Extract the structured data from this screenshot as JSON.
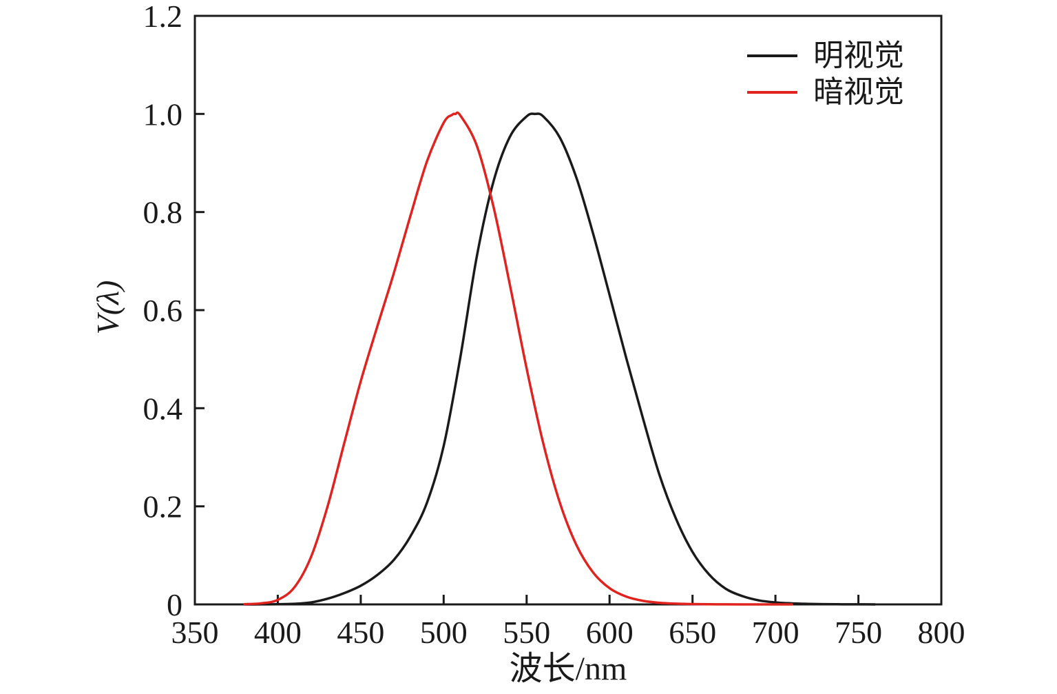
{
  "page": {
    "background": "#ffffff"
  },
  "chart_data": {
    "type": "line",
    "title": "",
    "xlabel": "波长/nm",
    "ylabel": "V(λ)",
    "xlim": [
      350,
      800
    ],
    "ylim": [
      0,
      1.2
    ],
    "x_ticks": [
      350,
      400,
      450,
      500,
      550,
      600,
      650,
      700,
      750,
      800
    ],
    "x_tick_labels": [
      "350",
      "400",
      "450",
      "500",
      "550",
      "600",
      "650",
      "700",
      "750",
      "800"
    ],
    "y_ticks": [
      0,
      0.2,
      0.4,
      0.6,
      0.8,
      1.0,
      1.2
    ],
    "y_tick_labels": [
      "0",
      "0.2",
      "0.4",
      "0.6",
      "0.8",
      "1.0",
      "1.2"
    ],
    "grid": false,
    "legend_position": "top-right-inside",
    "axis_color": "#1a1a1a",
    "series": [
      {
        "name": "明视觉",
        "color": "#1a1a1a",
        "peak": [
          555,
          1.0
        ],
        "points": [
          [
            380,
            4e-05
          ],
          [
            390,
            0.00012
          ],
          [
            400,
            0.0004
          ],
          [
            410,
            0.0012
          ],
          [
            420,
            0.004
          ],
          [
            430,
            0.0116
          ],
          [
            440,
            0.023
          ],
          [
            450,
            0.038
          ],
          [
            460,
            0.06
          ],
          [
            470,
            0.091
          ],
          [
            480,
            0.139
          ],
          [
            490,
            0.208
          ],
          [
            500,
            0.323
          ],
          [
            510,
            0.503
          ],
          [
            520,
            0.71
          ],
          [
            530,
            0.862
          ],
          [
            540,
            0.954
          ],
          [
            550,
            0.995
          ],
          [
            555,
            1.0
          ],
          [
            560,
            0.995
          ],
          [
            570,
            0.952
          ],
          [
            580,
            0.87
          ],
          [
            590,
            0.757
          ],
          [
            600,
            0.631
          ],
          [
            610,
            0.503
          ],
          [
            620,
            0.381
          ],
          [
            630,
            0.265
          ],
          [
            640,
            0.175
          ],
          [
            650,
            0.107
          ],
          [
            660,
            0.061
          ],
          [
            670,
            0.032
          ],
          [
            680,
            0.017
          ],
          [
            690,
            0.0082
          ],
          [
            700,
            0.0041
          ],
          [
            710,
            0.0021
          ],
          [
            720,
            0.00105
          ],
          [
            730,
            0.00052
          ],
          [
            740,
            0.00025
          ],
          [
            750,
            0.00012
          ],
          [
            760,
            6e-05
          ]
        ]
      },
      {
        "name": "暗视觉",
        "color": "#e0231e",
        "peak": [
          507,
          1.0
        ],
        "points": [
          [
            380,
            0.000589
          ],
          [
            390,
            0.002209
          ],
          [
            400,
            0.00929
          ],
          [
            410,
            0.03484
          ],
          [
            420,
            0.0966
          ],
          [
            430,
            0.1998
          ],
          [
            440,
            0.3281
          ],
          [
            450,
            0.455
          ],
          [
            460,
            0.567
          ],
          [
            470,
            0.676
          ],
          [
            480,
            0.793
          ],
          [
            490,
            0.904
          ],
          [
            500,
            0.982
          ],
          [
            505,
            0.998
          ],
          [
            507,
            1.0
          ],
          [
            510,
            0.997
          ],
          [
            520,
            0.935
          ],
          [
            530,
            0.811
          ],
          [
            540,
            0.65
          ],
          [
            550,
            0.481
          ],
          [
            560,
            0.3288
          ],
          [
            570,
            0.2076
          ],
          [
            580,
            0.1212
          ],
          [
            590,
            0.0655
          ],
          [
            600,
            0.03315
          ],
          [
            610,
            0.01593
          ],
          [
            620,
            0.00737
          ],
          [
            630,
            0.003335
          ],
          [
            640,
            0.001497
          ],
          [
            650,
            0.000677
          ],
          [
            660,
            0.000313
          ],
          [
            670,
            0.000148
          ],
          [
            680,
            7.15e-05
          ],
          [
            690,
            3.53e-05
          ],
          [
            700,
            1.78e-05
          ],
          [
            710,
            9.14e-06
          ]
        ]
      }
    ]
  }
}
